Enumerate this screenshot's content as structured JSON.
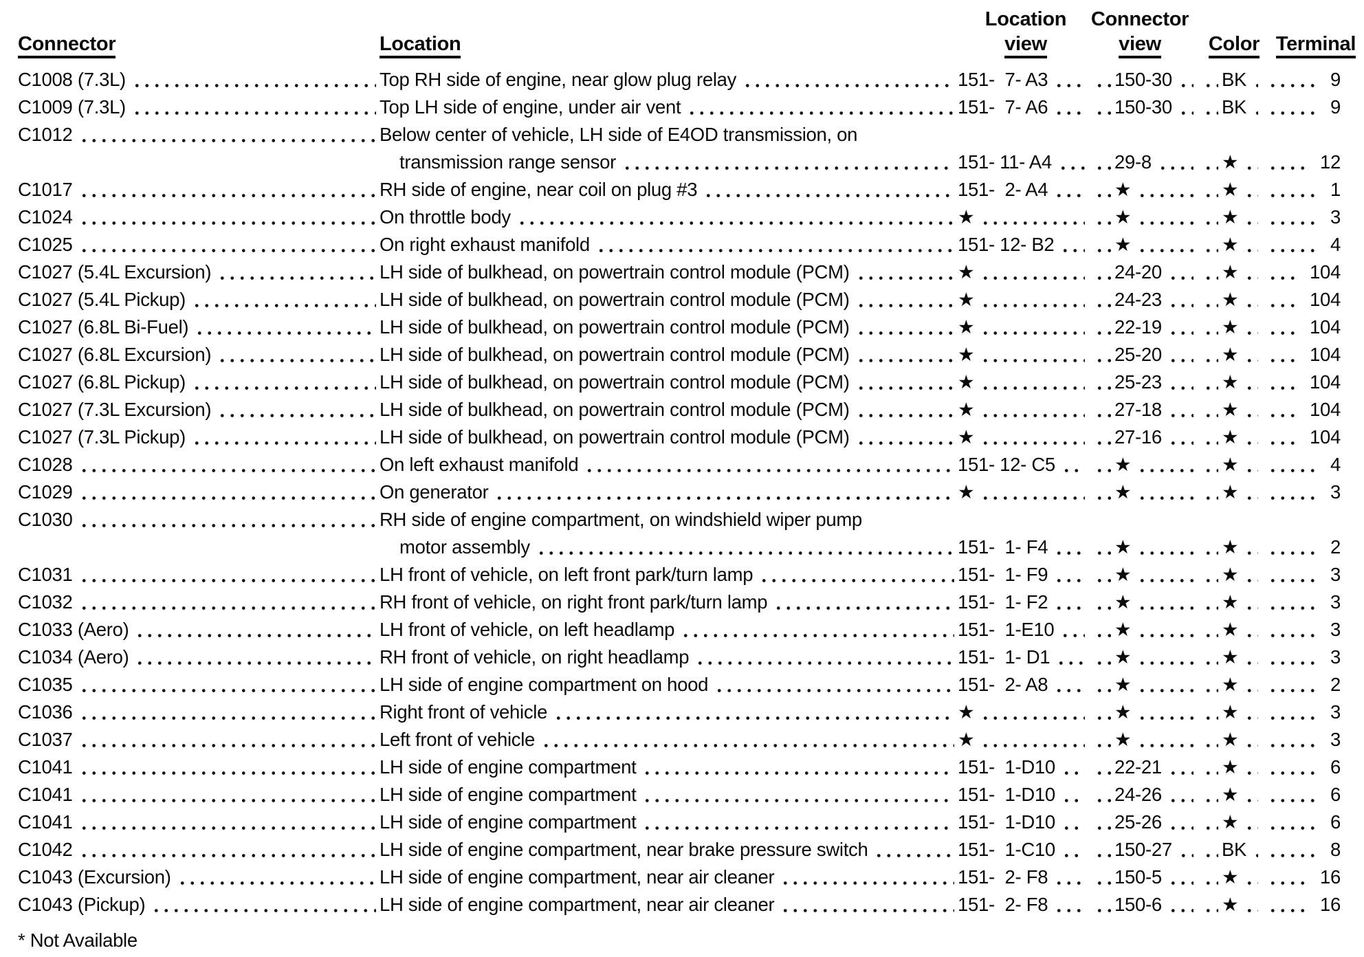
{
  "page": {
    "background": "#ffffff",
    "text_color": "#0b0b0b"
  },
  "columns": {
    "connector": "Connector",
    "location": "Location",
    "location_view": [
      "Location",
      "view"
    ],
    "connector_view": [
      "Connector",
      "view"
    ],
    "color": "Color",
    "terminal": "Terminal"
  },
  "not_available_symbol": "★",
  "rows": [
    {
      "connector": "C1008 (7.3L)",
      "location": "Top RH side of engine, near glow plug relay",
      "location_view": "151-  7- A3",
      "connector_view": "150-30",
      "color": "BK",
      "terminal": "9"
    },
    {
      "connector": "C1009 (7.3L)",
      "location": "Top LH side of engine, under air vent",
      "location_view": "151-  7- A6",
      "connector_view": "150-30",
      "color": "BK",
      "terminal": "9"
    },
    {
      "connector": "C1012",
      "location": "Below center of vehicle, LH side of E4OD transmission, on",
      "location2": "transmission range sensor",
      "location_view": "151- 11- A4",
      "connector_view": "29-8",
      "color": "★",
      "terminal": "12"
    },
    {
      "connector": "C1017",
      "location": "RH side of engine, near coil on plug #3",
      "location_view": "151-  2- A4",
      "connector_view": "★",
      "color": "★",
      "terminal": "1"
    },
    {
      "connector": "C1024",
      "location": "On throttle body",
      "location_view": "★",
      "connector_view": "★",
      "color": "★",
      "terminal": "3"
    },
    {
      "connector": "C1025",
      "location": "On right exhaust manifold",
      "location_view": "151- 12- B2",
      "connector_view": "★",
      "color": "★",
      "terminal": "4"
    },
    {
      "connector": "C1027 (5.4L Excursion)",
      "location": "LH side of bulkhead, on powertrain control module (PCM)",
      "location_view": "★",
      "connector_view": "24-20",
      "color": "★",
      "terminal": "104"
    },
    {
      "connector": "C1027 (5.4L Pickup)",
      "location": "LH side of bulkhead, on powertrain control module (PCM)",
      "location_view": "★",
      "connector_view": "24-23",
      "color": "★",
      "terminal": "104"
    },
    {
      "connector": "C1027 (6.8L Bi-Fuel)",
      "location": "LH side of bulkhead, on powertrain control module (PCM)",
      "location_view": "★",
      "connector_view": "22-19",
      "color": "★",
      "terminal": "104"
    },
    {
      "connector": "C1027 (6.8L Excursion)",
      "location": "LH side of bulkhead, on powertrain control module (PCM)",
      "location_view": "★",
      "connector_view": "25-20",
      "color": "★",
      "terminal": "104"
    },
    {
      "connector": "C1027 (6.8L Pickup)",
      "location": "LH side of bulkhead, on powertrain control module (PCM)",
      "location_view": "★",
      "connector_view": "25-23",
      "color": "★",
      "terminal": "104"
    },
    {
      "connector": "C1027 (7.3L Excursion)",
      "location": "LH side of bulkhead, on powertrain control module (PCM)",
      "location_view": "★",
      "connector_view": "27-18",
      "color": "★",
      "terminal": "104"
    },
    {
      "connector": "C1027 (7.3L Pickup)",
      "location": "LH side of bulkhead, on powertrain control module (PCM)",
      "location_view": "★",
      "connector_view": "27-16",
      "color": "★",
      "terminal": "104"
    },
    {
      "connector": "C1028",
      "location": "On left exhaust manifold",
      "location_view": "151- 12- C5",
      "connector_view": "★",
      "color": "★",
      "terminal": "4"
    },
    {
      "connector": "C1029",
      "location": "On generator",
      "location_view": "★",
      "connector_view": "★",
      "color": "★",
      "terminal": "3"
    },
    {
      "connector": "C1030",
      "location": "RH side of engine compartment, on windshield wiper pump",
      "location2": "motor assembly",
      "location_view": "151-  1- F4",
      "connector_view": "★",
      "color": "★",
      "terminal": "2"
    },
    {
      "connector": "C1031",
      "location": "LH front of vehicle, on left front park/turn lamp",
      "location_view": "151-  1- F9",
      "connector_view": "★",
      "color": "★",
      "terminal": "3"
    },
    {
      "connector": "C1032",
      "location": "RH front of vehicle, on right front park/turn lamp",
      "location_view": "151-  1- F2",
      "connector_view": "★",
      "color": "★",
      "terminal": "3"
    },
    {
      "connector": "C1033 (Aero)",
      "location": "LH front of vehicle, on left headlamp",
      "location_view": "151-  1-E10",
      "connector_view": "★",
      "color": "★",
      "terminal": "3"
    },
    {
      "connector": "C1034 (Aero)",
      "location": "RH front of vehicle, on right headlamp",
      "location_view": "151-  1- D1",
      "connector_view": "★",
      "color": "★",
      "terminal": "3"
    },
    {
      "connector": "C1035",
      "location": "LH side of engine compartment on hood",
      "location_view": "151-  2- A8",
      "connector_view": "★",
      "color": "★",
      "terminal": "2"
    },
    {
      "connector": "C1036",
      "location": "Right front of vehicle",
      "location_view": "★",
      "connector_view": "★",
      "color": "★",
      "terminal": "3"
    },
    {
      "connector": "C1037",
      "location": "Left front of vehicle",
      "location_view": "★",
      "connector_view": "★",
      "color": "★",
      "terminal": "3"
    },
    {
      "connector": "C1041",
      "location": "LH side of engine compartment",
      "location_view": "151-  1-D10",
      "connector_view": "22-21",
      "color": "★",
      "terminal": "6"
    },
    {
      "connector": "C1041",
      "location": "LH side of engine compartment",
      "location_view": "151-  1-D10",
      "connector_view": "24-26",
      "color": "★",
      "terminal": "6"
    },
    {
      "connector": "C1041",
      "location": "LH side of engine compartment",
      "location_view": "151-  1-D10",
      "connector_view": "25-26",
      "color": "★",
      "terminal": "6"
    },
    {
      "connector": "C1042",
      "location": "LH side of engine compartment, near brake pressure switch",
      "location_view": "151-  1-C10",
      "connector_view": "150-27",
      "color": "BK",
      "terminal": "8"
    },
    {
      "connector": "C1043 (Excursion)",
      "location": "LH side of engine compartment, near air cleaner",
      "location_view": "151-  2- F8",
      "connector_view": "150-5",
      "color": "★",
      "terminal": "16"
    },
    {
      "connector": "C1043 (Pickup)",
      "location": "LH side of engine compartment, near air cleaner",
      "location_view": "151-  2- F8",
      "connector_view": "150-6",
      "color": "★",
      "terminal": "16"
    }
  ],
  "footnote": "* Not Available"
}
